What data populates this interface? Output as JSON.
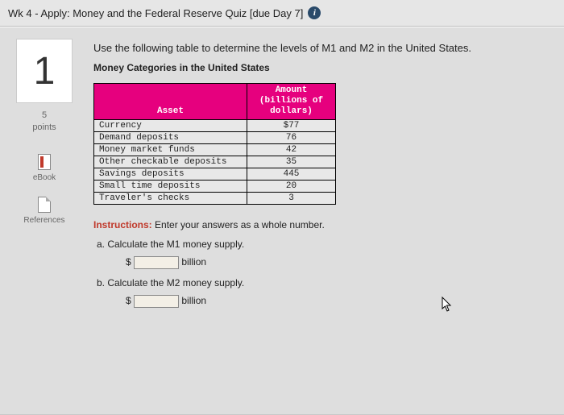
{
  "header": {
    "title": "Wk 4 - Apply: Money and the Federal Reserve Quiz [due Day 7]",
    "info_glyph": "i"
  },
  "sidebar": {
    "question_number": "1",
    "points_value": "5",
    "points_label": "points",
    "ebook_label": "eBook",
    "references_label": "References"
  },
  "question": {
    "prompt": "Use the following table to determine the levels of M1 and M2 in the United States.",
    "table_title": "Money Categories in the United States"
  },
  "table": {
    "header_asset": "Asset",
    "header_amount_l1": "Amount",
    "header_amount_l2": "(billions of",
    "header_amount_l3": "dollars)",
    "rows": [
      {
        "asset": "Currency",
        "amount": "$77"
      },
      {
        "asset": "Demand deposits",
        "amount": "76"
      },
      {
        "asset": "Money market funds",
        "amount": "42"
      },
      {
        "asset": "Other checkable deposits",
        "amount": "35"
      },
      {
        "asset": "Savings deposits",
        "amount": "445"
      },
      {
        "asset": "Small time deposits",
        "amount": "20"
      },
      {
        "asset": "Traveler's checks",
        "amount": "3"
      }
    ],
    "colors": {
      "header_bg": "#e6007e",
      "header_fg": "#ffffff",
      "border": "#000000",
      "cell_bg": "#e8e8e8"
    }
  },
  "instructions": {
    "label": "Instructions:",
    "text": "Enter your answers as a whole number."
  },
  "parts": {
    "a": {
      "text": "a. Calculate the M1 money supply.",
      "prefix": "$",
      "suffix": "billion"
    },
    "b": {
      "text": "b. Calculate the M2 money supply.",
      "prefix": "$",
      "suffix": "billion"
    }
  }
}
